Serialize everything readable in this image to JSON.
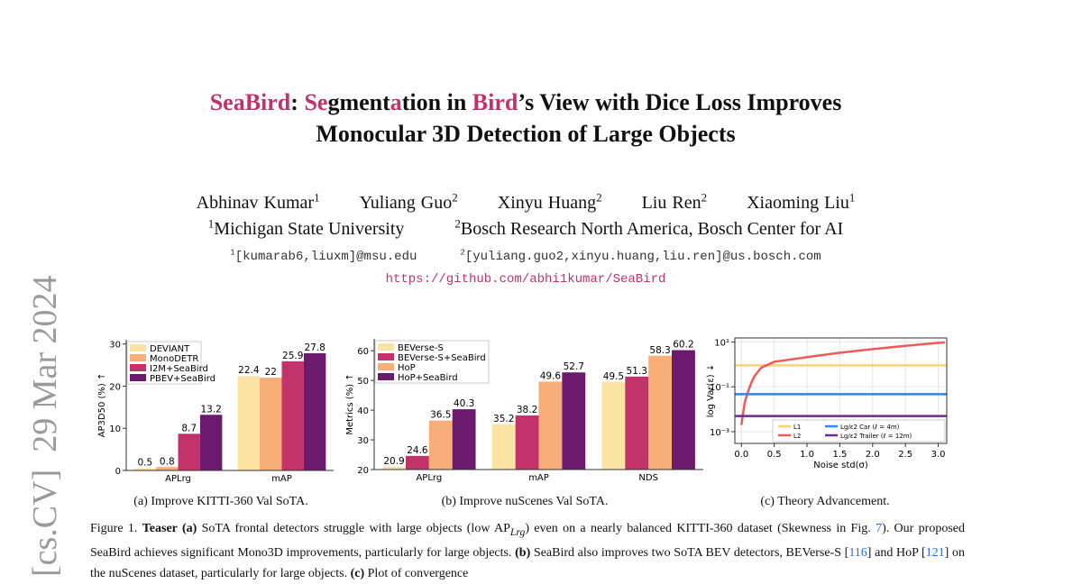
{
  "arxiv_stamp": "[cs.CV]  29 Mar 2024",
  "title_color": "#c0326b",
  "title_lines": [
    [
      {
        "text": "SeaBird",
        "highlight": true
      },
      {
        "text": ": ",
        "highlight": false
      },
      {
        "text": "Se",
        "highlight": true
      },
      {
        "text": "gment",
        "highlight": false
      },
      {
        "text": "a",
        "highlight": true
      },
      {
        "text": "tion in ",
        "highlight": false
      },
      {
        "text": "Bird",
        "highlight": true
      },
      {
        "text": "’s View with Dice Loss Improves",
        "highlight": false
      }
    ],
    [
      {
        "text": "Monocular 3D Detection of Large Objects",
        "highlight": false
      }
    ]
  ],
  "authors": [
    {
      "name": "Abhinav Kumar",
      "aff": "1"
    },
    {
      "name": "Yuliang Guo",
      "aff": "2"
    },
    {
      "name": "Xinyu Huang",
      "aff": "2"
    },
    {
      "name": "Liu Ren",
      "aff": "2"
    },
    {
      "name": "Xiaoming Liu",
      "aff": "1"
    }
  ],
  "affiliations": [
    {
      "aff": "1",
      "name": "Michigan State University",
      "email": "[kumarab6,liuxm]@msu.edu"
    },
    {
      "aff": "2",
      "name": "Bosch Research North America, Bosch Center for AI",
      "email": "[yuliang.guo2,xinyu.huang,liu.ren]@us.bosch.com"
    }
  ],
  "url": "https://github.com/abhi1kumar/SeaBird",
  "subcaptions": [
    "(a) Improve KITTI-360 Val SoTA.",
    "(b) Improve nuScenes Val SoTA.",
    "(c) Theory Advancement."
  ],
  "caption": [
    {
      "text": "Figure 1. ",
      "style": "plain"
    },
    {
      "text": "Teaser (a)",
      "style": "bold"
    },
    {
      "text": " SoTA frontal detectors struggle with large objects (low AP",
      "style": "plain"
    },
    {
      "text": "Lrg",
      "style": "sub"
    },
    {
      "text": ") even on a nearly balanced KITTI-360 dataset (Skewness in Fig. ",
      "style": "plain"
    },
    {
      "text": "7",
      "style": "link"
    },
    {
      "text": "). Our proposed SeaBird achieves significant Mono3D improvements, particularly for large objects. ",
      "style": "plain"
    },
    {
      "text": "(b)",
      "style": "bold"
    },
    {
      "text": " SeaBird also improves two SoTA BEV detectors, BEVerse-S [",
      "style": "plain"
    },
    {
      "text": "116",
      "style": "link"
    },
    {
      "text": "] and HoP [",
      "style": "plain"
    },
    {
      "text": "121",
      "style": "link"
    },
    {
      "text": "] on the nuScenes dataset, particularly for large objects. ",
      "style": "plain"
    },
    {
      "text": "(c)",
      "style": "bold"
    },
    {
      "text": " Plot of convergence",
      "style": "plain"
    }
  ],
  "chart_data": [
    {
      "type": "bar",
      "y_label": "AP3D50 (%) ↑",
      "categories": [
        "APLrg",
        "mAP"
      ],
      "ylim": [
        0,
        31
      ],
      "yticks": [
        0,
        10,
        20,
        30
      ],
      "grid": false,
      "legend": "upper-left",
      "series": [
        {
          "name": "DEVIANT",
          "color": "#fbe3a4",
          "values": [
            0.5,
            22.4
          ]
        },
        {
          "name": "MonoDETR",
          "color": "#f7ae78",
          "values": [
            0.8,
            22.0
          ]
        },
        {
          "name": "I2M+SeaBird",
          "color": "#c2336a",
          "values": [
            8.7,
            25.9
          ]
        },
        {
          "name": "PBEV+SeaBird",
          "color": "#6b1a6e",
          "values": [
            13.2,
            27.8
          ]
        }
      ]
    },
    {
      "type": "bar",
      "y_label": "Metrics (%) ↑",
      "categories": [
        "APLrg",
        "mAP",
        "NDS"
      ],
      "ylim": [
        20,
        64
      ],
      "yticks": [
        20,
        30,
        40,
        50,
        60
      ],
      "grid": false,
      "legend": "upper-left",
      "series": [
        {
          "name": "BEVerse-S",
          "color": "#fbe3a4",
          "values": [
            20.9,
            35.2,
            49.5
          ]
        },
        {
          "name": "BEVerse-S+SeaBird",
          "color": "#c2336a",
          "values": [
            24.6,
            38.2,
            51.3
          ]
        },
        {
          "name": "HoP",
          "color": "#f7ae78",
          "values": [
            36.5,
            49.6,
            58.3
          ]
        },
        {
          "name": "HoP+SeaBird",
          "color": "#6b1a6e",
          "values": [
            40.3,
            52.7,
            60.2
          ]
        }
      ]
    },
    {
      "type": "line",
      "x_label": "Noise std(σ)",
      "y_label": "log Var(ε) ↓",
      "log_y": true,
      "grid": true,
      "legend": "lower-right",
      "xlim": [
        -0.1,
        3.13
      ],
      "ylim": [
        0.0003,
        15
      ],
      "xticks": [
        {
          "value": 0,
          "label": "0.0"
        },
        0.5,
        {
          "value": 1,
          "label": "1.0"
        },
        1.5,
        {
          "value": 2,
          "label": "2.0"
        },
        2.5,
        {
          "value": 3,
          "label": "3.0"
        }
      ],
      "yticks": [
        {
          "value": 0.001,
          "label": "10⁻³"
        },
        {
          "value": 0.1,
          "label": "10⁻¹"
        },
        {
          "value": 10,
          "label": "10¹"
        }
      ],
      "series": [
        {
          "name": "L1",
          "color": "#f8d27a",
          "x": [
            -0.1,
            3.13
          ],
          "values": [
            0.9,
            0.9
          ]
        },
        {
          "name": "L2",
          "color": "#ee5a5a",
          "x": [
            0,
            0.05,
            0.1,
            0.15,
            0.2,
            0.3,
            0.5,
            1,
            1.5,
            2,
            2.5,
            3,
            3.1
          ],
          "values": [
            0.002,
            0.02,
            0.06,
            0.15,
            0.3,
            0.7,
            1.3,
            2.1,
            3.3,
            4.8,
            6.7,
            9,
            9.5
          ]
        },
        {
          "name": "Lg/ε2 Car (ℓ = 4m)",
          "color": "#2f86e0",
          "x": [
            -0.1,
            3.13
          ],
          "values": [
            0.047,
            0.047
          ]
        },
        {
          "name": "Lg/ε2 Trailer (ℓ = 12m)",
          "color": "#6b2a8e",
          "x": [
            -0.1,
            3.13
          ],
          "values": [
            0.005,
            0.005
          ]
        }
      ]
    }
  ]
}
